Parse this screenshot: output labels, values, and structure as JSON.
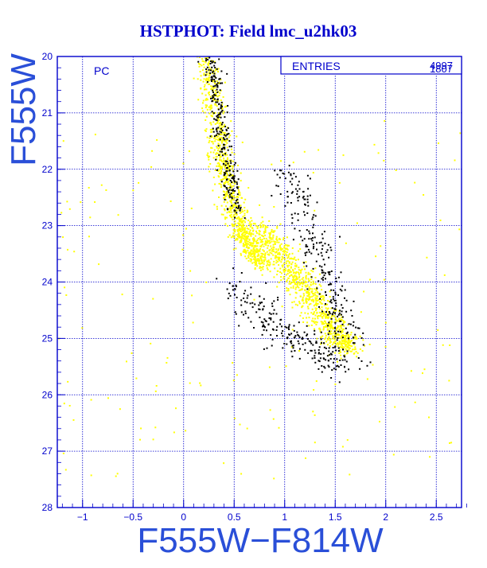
{
  "chart_data": {
    "type": "scatter",
    "title": "HSTPHOT: Field lmc_u2hk03",
    "xlabel": "F555W−F814W",
    "ylabel": "F555W",
    "panel_label": "PC",
    "stats": {
      "label": "ENTRIES",
      "values": [
        "4997",
        "1807"
      ]
    },
    "xlim": [
      -1.25,
      2.75
    ],
    "ylim": [
      28,
      20
    ],
    "y_inverted": true,
    "grid": true,
    "x_ticks": [
      -1,
      -0.5,
      0,
      0.5,
      1,
      1.5,
      2,
      2.5
    ],
    "x_tick_labels": [
      "−1",
      "−0.5",
      "0",
      "0.5",
      "1",
      "1.5",
      "2",
      "2.5"
    ],
    "y_ticks": [
      20,
      21,
      22,
      23,
      24,
      25,
      26,
      27,
      28
    ],
    "y_tick_labels": [
      "20",
      "21",
      "22",
      "23",
      "24",
      "25",
      "26",
      "27",
      "28"
    ],
    "series": [
      {
        "color": "#ffff00",
        "count": 4997,
        "features": [
          {
            "kind": "sequence",
            "x": [
              0.22,
              0.3,
              0.38,
              0.46,
              0.55,
              0.65,
              0.8
            ],
            "y": [
              20.0,
              21.0,
              21.8,
              22.4,
              23.0,
              23.4,
              23.7
            ],
            "spread": 0.1
          },
          {
            "kind": "sequence",
            "x": [
              0.7,
              0.95,
              1.15,
              1.35,
              1.5,
              1.65
            ],
            "y": [
              23.0,
              23.5,
              24.0,
              24.5,
              24.9,
              25.2
            ],
            "spread": 0.14
          },
          {
            "kind": "field",
            "x": [
              -1.25,
              2.75
            ],
            "y": [
              21.0,
              27.5
            ]
          }
        ]
      },
      {
        "color": "#000000",
        "count": 1807,
        "features": [
          {
            "kind": "sequence",
            "x": [
              0.28,
              0.35,
              0.45,
              0.52
            ],
            "y": [
              20.0,
              21.0,
              22.0,
              22.8
            ],
            "spread": 0.08
          },
          {
            "kind": "sequence",
            "x": [
              1.0,
              1.2,
              1.35,
              1.5,
              1.65
            ],
            "y": [
              22.0,
              22.8,
              23.6,
              24.4,
              25.1
            ],
            "spread": 0.14
          },
          {
            "kind": "sequence",
            "x": [
              0.5,
              0.9,
              1.3,
              1.6
            ],
            "y": [
              24.0,
              24.8,
              25.2,
              25.5
            ],
            "spread": 0.18
          }
        ]
      }
    ]
  },
  "colors": {
    "axes": "#0000cc",
    "grid": "#0000cc",
    "title": "#0000cc",
    "label": "#2a4fd8"
  }
}
